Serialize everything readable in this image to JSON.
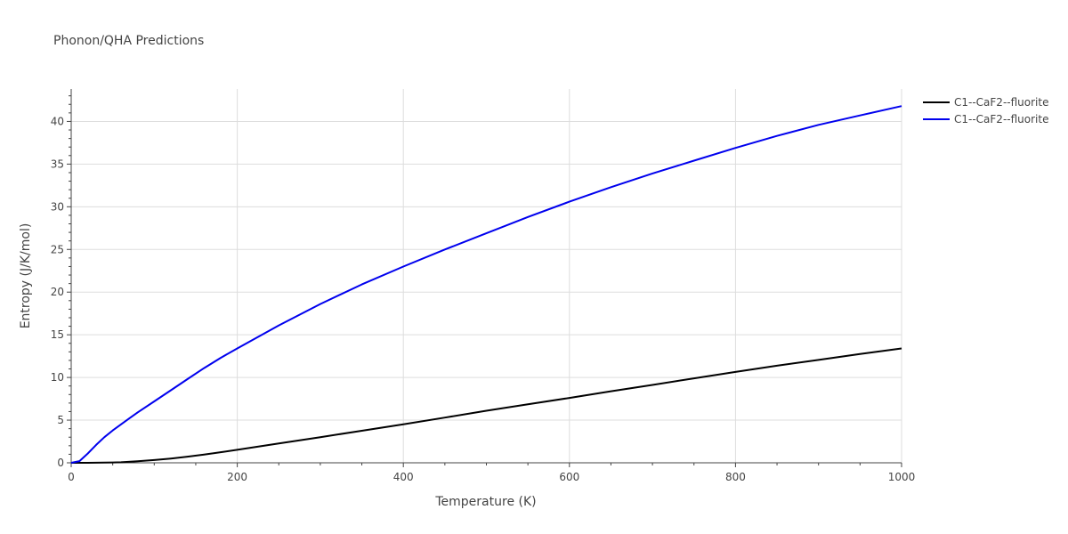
{
  "chart_data": {
    "type": "line",
    "title": "Phonon/QHA Predictions",
    "xlabel": "Temperature (K)",
    "ylabel": "Entropy (J/K/mol)",
    "xlim": [
      0,
      1000
    ],
    "ylim": [
      0,
      43.8
    ],
    "xticks": [
      0,
      200,
      400,
      600,
      800,
      1000
    ],
    "yticks": [
      0,
      5,
      10,
      15,
      20,
      25,
      30,
      35,
      40
    ],
    "grid": true,
    "legend_position": "top-right",
    "series": [
      {
        "name": "C1--CaF2--fluorite",
        "color": "#000000",
        "x": [
          0,
          20,
          40,
          60,
          80,
          100,
          120,
          140,
          160,
          180,
          200,
          250,
          300,
          350,
          400,
          450,
          500,
          550,
          600,
          650,
          700,
          750,
          800,
          850,
          900,
          950,
          1000
        ],
        "y": [
          0,
          0,
          0.02,
          0.06,
          0.18,
          0.32,
          0.5,
          0.72,
          0.96,
          1.24,
          1.52,
          2.26,
          3.0,
          3.75,
          4.5,
          5.3,
          6.1,
          6.85,
          7.6,
          8.38,
          9.12,
          9.9,
          10.65,
          11.38,
          12.06,
          12.74,
          13.4
        ]
      },
      {
        "name": "C1--CaF2--fluorite",
        "color": "#0000ee",
        "x": [
          0,
          10,
          20,
          30,
          40,
          50,
          60,
          70,
          80,
          100,
          120,
          140,
          160,
          180,
          200,
          250,
          300,
          350,
          400,
          450,
          500,
          550,
          600,
          650,
          700,
          750,
          800,
          850,
          900,
          950,
          1000
        ],
        "y": [
          0,
          0.2,
          1.1,
          2.1,
          3.0,
          3.8,
          4.5,
          5.2,
          5.9,
          7.2,
          8.5,
          9.8,
          11.1,
          12.3,
          13.4,
          16.1,
          18.6,
          20.9,
          23.0,
          25.0,
          26.9,
          28.8,
          30.6,
          32.3,
          33.9,
          35.4,
          36.9,
          38.3,
          39.6,
          40.7,
          41.8
        ]
      }
    ]
  }
}
